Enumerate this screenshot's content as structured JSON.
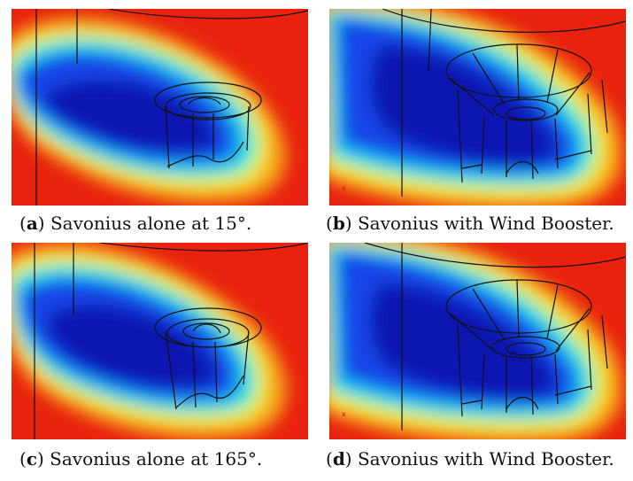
{
  "figure": {
    "panels": [
      {
        "tag": "a",
        "caption_text": " Savonius alone at 15°.",
        "booster": false
      },
      {
        "tag": "b",
        "caption_text": " Savonius with Wind Booster.",
        "booster": true,
        "axis_marker": "x"
      },
      {
        "tag": "c",
        "caption_text": " Savonius alone at 165°.",
        "booster": false
      },
      {
        "tag": "d",
        "caption_text": " Savonius with Wind Booster.",
        "booster": true,
        "axis_marker": "x"
      }
    ],
    "colors": {
      "background": "#e8220e",
      "wake_outer": "#f7a21a",
      "wake_mid": "#f2ee2a",
      "wake_edge": "#3ff0d4",
      "wake_cyan": "#10b6f0",
      "wake_core": "#1544e8",
      "wake_deep": "#0a18b0",
      "wireframe": "#111111"
    }
  }
}
